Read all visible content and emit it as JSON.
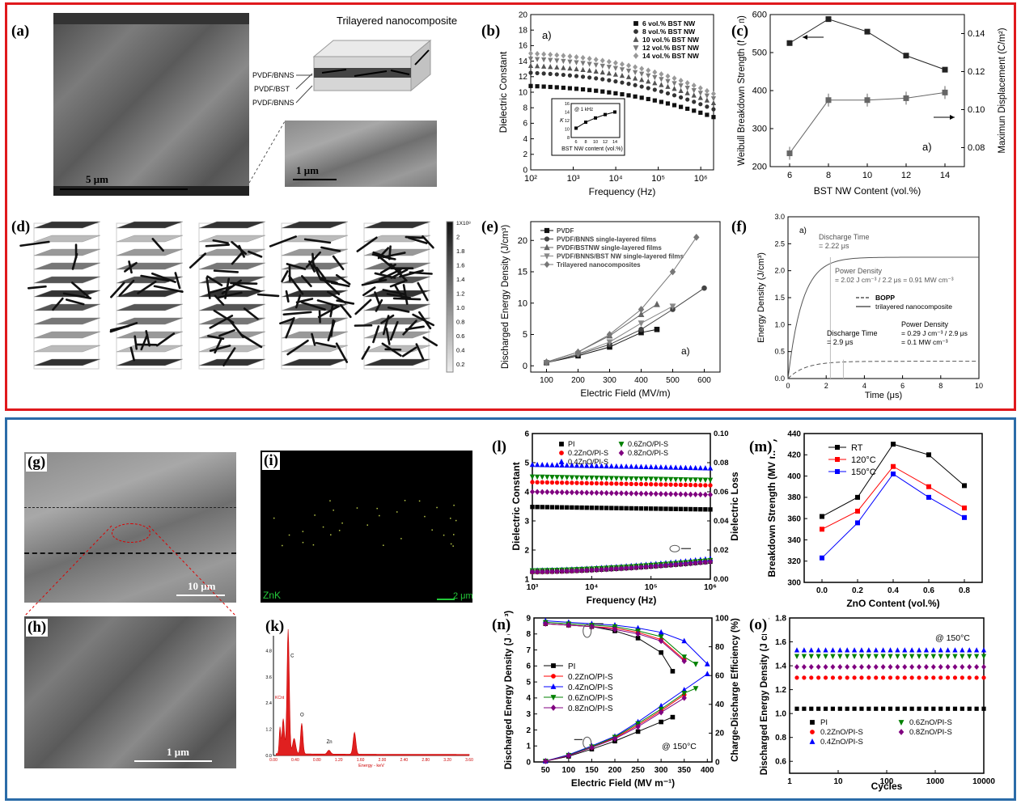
{
  "panels": {
    "a": {
      "label": "(a)",
      "scale_main": "5 μm",
      "scale_inset": "1 μm",
      "title": "Trilayered nanocomposite",
      "layers": [
        "PVDF/BNNS",
        "PVDF/BST",
        "PVDF/BNNS"
      ]
    },
    "b": {
      "label": "(b)"
    },
    "c": {
      "label": "(c)"
    },
    "d": {
      "label": "(d)",
      "colorbar_ticks": [
        "1X10⁸",
        "2",
        "1.8",
        "1.6",
        "1.4",
        "1.2",
        "1.0",
        "0.8",
        "0.6",
        "0.4",
        "0.2"
      ]
    },
    "e": {
      "label": "(e)"
    },
    "f": {
      "label": "(f)"
    },
    "g": {
      "label": "(g)",
      "scale": "10 μm"
    },
    "h": {
      "label": "(h)",
      "scale": "1 μm"
    },
    "i": {
      "label": "(i)",
      "element": "ZnK",
      "scale": "2 μm"
    },
    "k": {
      "label": "(k)",
      "peaks": [
        "C",
        "O",
        "Zn"
      ],
      "ylabel": "KCnt",
      "xlabel": "Energy - keV",
      "yticks": [
        "6.0",
        "4.8",
        "3.6",
        "2.4",
        "1.2",
        "0.0"
      ],
      "xticks": [
        "0.00",
        "0.40",
        "0.80",
        "1.20",
        "1.60",
        "2.00",
        "2.40",
        "2.80",
        "3.20",
        "3.60"
      ]
    },
    "l": {
      "label": "(l)"
    },
    "m": {
      "label": "(m)"
    },
    "n": {
      "label": "(n)"
    },
    "o": {
      "label": "(o)"
    }
  },
  "chart_data": [
    {
      "id": "b",
      "type": "scatter",
      "panel_tag": "a)",
      "xlabel": "Frequency (Hz)",
      "ylabel": "Dielectric Constant",
      "xscale": "log",
      "xlim": [
        100,
        2000000
      ],
      "ylim": [
        0,
        20
      ],
      "yticks": [
        "0",
        "2",
        "4",
        "6",
        "8",
        "10",
        "12",
        "14",
        "16",
        "18",
        "20"
      ],
      "xticks": [
        "10²",
        "10³",
        "10⁴",
        "10⁵",
        "10⁶"
      ],
      "series": [
        {
          "name": "6 vol.% BST NW",
          "start": 10.8,
          "end": 6.8,
          "color": "#111111",
          "marker": "square"
        },
        {
          "name": "8 vol.% BST NW",
          "start": 12.5,
          "end": 7.8,
          "color": "#333333",
          "marker": "circle"
        },
        {
          "name": "10 vol.% BST NW",
          "start": 13.4,
          "end": 8.6,
          "color": "#555555",
          "marker": "triangle"
        },
        {
          "name": "12 vol.% BST NW",
          "start": 14.3,
          "end": 9.2,
          "color": "#7a7a7a",
          "marker": "triangle-down"
        },
        {
          "name": "14 vol.% BST NW",
          "start": 15.0,
          "end": 9.8,
          "color": "#999999",
          "marker": "diamond"
        }
      ],
      "inset": {
        "title": "@ 1 kHz",
        "xlabel": "BST NW content (vol.%)",
        "ylabel": "K",
        "x": [
          6,
          8,
          10,
          12,
          14
        ],
        "y": [
          10.2,
          11.6,
          12.6,
          13.4,
          14.0
        ],
        "xticks": [
          "6",
          "8",
          "10",
          "12",
          "14"
        ],
        "yticks": [
          "8",
          "10",
          "12",
          "14",
          "16"
        ],
        "ylim": [
          8,
          16
        ]
      }
    },
    {
      "id": "c",
      "type": "line",
      "panel_tag": "a)",
      "xlabel": "BST NW Content (vol.%)",
      "ylabel": "Weibull Breakdown Strength (MV/m)",
      "y2label": "Maximun Displacement (C/m²)",
      "x": [
        6,
        8,
        10,
        12,
        14
      ],
      "xlim": [
        5,
        15
      ],
      "ylim": [
        200,
        600
      ],
      "y2lim": [
        0.07,
        0.15
      ],
      "xticks": [
        "6",
        "8",
        "10",
        "12",
        "14"
      ],
      "yticks": [
        "200",
        "300",
        "400",
        "500",
        "600"
      ],
      "y2ticks": [
        "0.08",
        "0.10",
        "0.12",
        "0.14"
      ],
      "series": [
        {
          "name": "",
          "axis": "left",
          "values": [
            525,
            588,
            555,
            492,
            455
          ],
          "marker": "square",
          "color": "#222222"
        },
        {
          "name": "",
          "axis": "right",
          "values": [
            0.077,
            0.105,
            0.105,
            0.106,
            0.109
          ],
          "marker": "square",
          "color": "#666666"
        }
      ]
    },
    {
      "id": "e",
      "type": "line",
      "panel_tag": "a)",
      "xlabel": "Electric Field (MV/m)",
      "ylabel": "Discharged Energy Density (J/cm³)",
      "xlim": [
        50,
        650
      ],
      "ylim": [
        -1,
        23
      ],
      "xticks": [
        "100",
        "200",
        "300",
        "400",
        "500",
        "600"
      ],
      "yticks": [
        "0",
        "5",
        "10",
        "15",
        "20"
      ],
      "series": [
        {
          "name": "PVDF",
          "x": [
            100,
            200,
            300,
            400,
            450
          ],
          "values": [
            0.5,
            1.6,
            3.0,
            5.3,
            5.8
          ],
          "marker": "square",
          "color": "#111111"
        },
        {
          "name": "PVDF/BNNS single-layered films",
          "x": [
            100,
            200,
            300,
            400,
            500,
            600
          ],
          "values": [
            0.5,
            1.8,
            3.4,
            5.8,
            9.0,
            12.4
          ],
          "marker": "circle",
          "color": "#444444"
        },
        {
          "name": "PVDF/BSTNW single-layered films",
          "x": [
            100,
            200,
            300,
            400,
            450
          ],
          "values": [
            0.6,
            2.2,
            4.8,
            8.2,
            9.8
          ],
          "marker": "triangle",
          "color": "#666666"
        },
        {
          "name": "PVDF/BNNS/BST NW single-layered films",
          "x": [
            100,
            200,
            300,
            400,
            500
          ],
          "values": [
            0.5,
            1.9,
            3.8,
            6.8,
            9.5
          ],
          "marker": "triangle-down",
          "color": "#888888"
        },
        {
          "name": "Trilayered nanocomposites",
          "x": [
            100,
            200,
            300,
            400,
            500,
            575
          ],
          "values": [
            0.6,
            2.2,
            5.0,
            9.0,
            15.0,
            20.5
          ],
          "marker": "diamond",
          "color": "#777777"
        }
      ]
    },
    {
      "id": "f",
      "type": "line",
      "panel_tag": "a)",
      "xlabel": "Time (μs)",
      "ylabel": "Energy Density (J/cm³)",
      "xlim": [
        0,
        10
      ],
      "ylim": [
        0,
        3.0
      ],
      "xticks": [
        "0",
        "2",
        "4",
        "6",
        "8",
        "10"
      ],
      "yticks": [
        "0.0",
        "0.5",
        "1.0",
        "1.5",
        "2.0",
        "2.5",
        "3.0"
      ],
      "series": [
        {
          "name": "BOPP",
          "dash": true,
          "plateau": 0.32,
          "tau": 0.9
        },
        {
          "name": "trilayered nanocomposite",
          "dash": false,
          "plateau": 2.25,
          "tau": 0.75
        }
      ],
      "annotations": {
        "dt1": "Discharge Time",
        "dt1_val": "= 2.22 μs",
        "pd1": "Power Density",
        "pd1_val": "= 2.02 J cm⁻³ / 2.2 μs = 0.91 MW cm⁻³",
        "dt2": "Discharge Time",
        "dt2_val": "= 2.9 μs",
        "pd2": "Power Density",
        "pd2_val1": "= 0.29 J cm⁻³ / 2.9 μs",
        "pd2_val2": "= 0.1 MW cm⁻³"
      }
    },
    {
      "id": "l",
      "type": "scatter",
      "xlabel": "Frequency (Hz)",
      "ylabel": "Dielectric Constant",
      "y2label": "Dielectric Loss",
      "xscale": "log",
      "xlim": [
        1000,
        1000000
      ],
      "ylim": [
        1,
        6
      ],
      "y2lim": [
        0,
        0.1
      ],
      "xticks": [
        "10³",
        "10⁴",
        "10⁵",
        "10⁶"
      ],
      "yticks": [
        "1",
        "2",
        "3",
        "4",
        "5",
        "6"
      ],
      "y2ticks": [
        "0.00",
        "0.02",
        "0.04",
        "0.06",
        "0.08",
        "0.10"
      ],
      "series": [
        {
          "name": "PI",
          "const": 3.48,
          "loss_start": 0.005,
          "loss_end": 0.012,
          "color": "#000000",
          "marker": "square"
        },
        {
          "name": "0.2ZnO/PI-S",
          "const": 4.33,
          "loss_start": 0.005,
          "loss_end": 0.013,
          "color": "#ff0000",
          "marker": "circle"
        },
        {
          "name": "0.4ZnO/PI-S",
          "const": 4.93,
          "loss_start": 0.006,
          "loss_end": 0.014,
          "color": "#0000ff",
          "marker": "triangle"
        },
        {
          "name": "0.6ZnO/PI-S",
          "const": 4.52,
          "loss_start": 0.006,
          "loss_end": 0.013,
          "color": "#008000",
          "marker": "triangle-down"
        },
        {
          "name": "0.8ZnO/PI-S",
          "const": 4.0,
          "loss_start": 0.005,
          "loss_end": 0.012,
          "color": "#800080",
          "marker": "diamond"
        }
      ]
    },
    {
      "id": "m",
      "type": "line",
      "xlabel": "ZnO Content (vol.%)",
      "ylabel": "Breakdown Strength (MV m⁻¹)",
      "x": [
        0.0,
        0.2,
        0.4,
        0.6,
        0.8
      ],
      "xlim": [
        -0.1,
        0.9
      ],
      "ylim": [
        300,
        440
      ],
      "xticks": [
        "0.0",
        "0.2",
        "0.4",
        "0.6",
        "0.8"
      ],
      "yticks": [
        "300",
        "320",
        "340",
        "360",
        "380",
        "400",
        "420",
        "440"
      ],
      "series": [
        {
          "name": "RT",
          "values": [
            362,
            380,
            430,
            420,
            391
          ],
          "color": "#000000"
        },
        {
          "name": "120°C",
          "values": [
            350,
            367,
            409,
            390,
            370
          ],
          "color": "#ff0000"
        },
        {
          "name": "150°C",
          "values": [
            323,
            356,
            402,
            380,
            361
          ],
          "color": "#0000ff"
        }
      ]
    },
    {
      "id": "n",
      "type": "line",
      "annotation": "@ 150°C",
      "xlabel": "Electric Field (MV m⁻¹)",
      "ylabel": "Discharged Energy Density (J cm⁻³)",
      "y2label": "Charge-Discharge Efficiency (%)",
      "xlim": [
        25,
        410
      ],
      "ylim": [
        0,
        9
      ],
      "y2lim": [
        0,
        100
      ],
      "xticks": [
        "50",
        "100",
        "150",
        "200",
        "250",
        "300",
        "350",
        "400"
      ],
      "yticks": [
        "0",
        "1",
        "2",
        "3",
        "4",
        "5",
        "6",
        "7",
        "8",
        "9"
      ],
      "y2ticks": [
        "0",
        "20",
        "40",
        "60",
        "80",
        "100"
      ],
      "series": [
        {
          "name": "PI",
          "x": [
            50,
            100,
            150,
            200,
            250,
            300,
            325
          ],
          "energy": [
            0.05,
            0.35,
            0.8,
            1.3,
            1.9,
            2.5,
            2.8
          ],
          "eff": [
            96,
            95,
            94,
            91,
            86,
            76,
            63
          ],
          "color": "#000000",
          "marker": "square"
        },
        {
          "name": "0.2ZnO/PI-S",
          "x": [
            50,
            100,
            150,
            200,
            250,
            300,
            350
          ],
          "energy": [
            0.05,
            0.4,
            0.9,
            1.5,
            2.3,
            3.2,
            4.2
          ],
          "eff": [
            96,
            95,
            94,
            93,
            90,
            85,
            71
          ],
          "color": "#ff0000",
          "marker": "circle"
        },
        {
          "name": "0.4ZnO/PI-S",
          "x": [
            50,
            100,
            150,
            200,
            250,
            300,
            350,
            400
          ],
          "energy": [
            0.06,
            0.45,
            1.0,
            1.6,
            2.5,
            3.5,
            4.5,
            5.5
          ],
          "eff": [
            98,
            97,
            96,
            95,
            93,
            90,
            84,
            68
          ],
          "color": "#0000ff",
          "marker": "triangle"
        },
        {
          "name": "0.6ZnO/PI-S",
          "x": [
            50,
            100,
            150,
            200,
            250,
            300,
            350,
            375
          ],
          "energy": [
            0.05,
            0.42,
            0.95,
            1.55,
            2.4,
            3.3,
            4.3,
            4.6
          ],
          "eff": [
            97,
            96,
            95,
            94,
            91,
            87,
            73,
            68
          ],
          "color": "#008000",
          "marker": "triangle-down"
        },
        {
          "name": "0.8ZnO/PI-S",
          "x": [
            50,
            100,
            150,
            200,
            250,
            300,
            350
          ],
          "energy": [
            0.05,
            0.4,
            0.9,
            1.45,
            2.2,
            3.1,
            4.0
          ],
          "eff": [
            96,
            95,
            94,
            92,
            89,
            84,
            70
          ],
          "color": "#800080",
          "marker": "diamond"
        }
      ]
    },
    {
      "id": "o",
      "type": "scatter",
      "annotation": "@ 150°C",
      "xlabel": "Cycles",
      "ylabel": "Discharged Energy Density (J cm⁻³)",
      "xscale": "log",
      "xlim": [
        1,
        10000
      ],
      "ylim": [
        0.5,
        1.8
      ],
      "xticks": [
        "1",
        "10",
        "100",
        "1000",
        "10000"
      ],
      "yticks": [
        "0.6",
        "0.8",
        "1.0",
        "1.2",
        "1.4",
        "1.6",
        "1.8"
      ],
      "series": [
        {
          "name": "PI",
          "value": 1.04,
          "color": "#000000",
          "marker": "square"
        },
        {
          "name": "0.2ZnO/PI-S",
          "value": 1.3,
          "color": "#ff0000",
          "marker": "circle"
        },
        {
          "name": "0.4ZnO/PI-S",
          "value": 1.53,
          "color": "#0000ff",
          "marker": "triangle"
        },
        {
          "name": "0.6ZnO/PI-S",
          "value": 1.48,
          "color": "#008000",
          "marker": "triangle-down"
        },
        {
          "name": "0.8ZnO/PI-S",
          "value": 1.39,
          "color": "#800080",
          "marker": "diamond"
        }
      ]
    }
  ]
}
